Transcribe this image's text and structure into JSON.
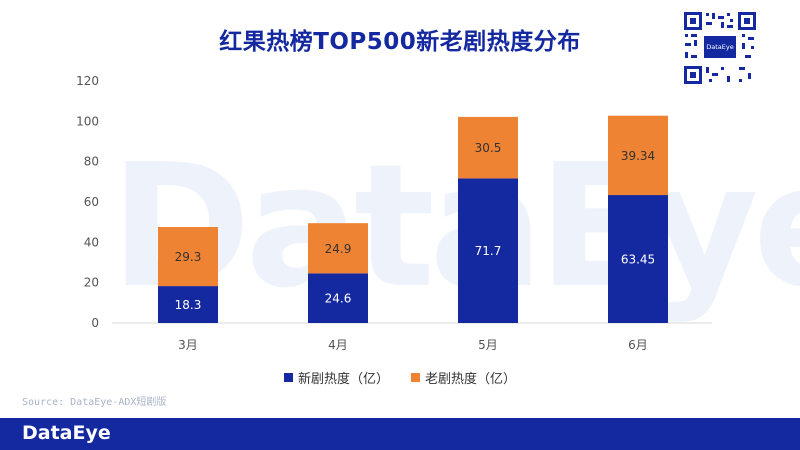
{
  "title": "红果热榜TOP500新老剧热度分布",
  "watermark": "DataEye",
  "source": "Source: DataEye-ADX短剧版",
  "footer_logo": "DataEye",
  "qr_badge": "DataEye",
  "colors": {
    "new": "#1428a0",
    "old": "#ee8333",
    "title": "#1428a0",
    "footer": "#1428a0"
  },
  "chart_data": {
    "type": "bar",
    "stacked": true,
    "title": "红果热榜TOP500新老剧热度分布",
    "categories": [
      "3月",
      "4月",
      "5月",
      "6月"
    ],
    "series": [
      {
        "name": "新剧热度（亿）",
        "values": [
          18.3,
          24.6,
          71.7,
          63.45
        ],
        "labels": [
          "18.3",
          "24.6",
          "71.7",
          "63.45"
        ],
        "color": "#1428a0"
      },
      {
        "name": "老剧热度（亿）",
        "values": [
          29.3,
          24.9,
          30.5,
          39.34
        ],
        "labels": [
          "29.3",
          "24.9",
          "30.5",
          "39.34"
        ],
        "color": "#ee8333"
      }
    ],
    "ylim": [
      0,
      120
    ],
    "yticks": [
      "0",
      "20",
      "40",
      "60",
      "80",
      "100",
      "120"
    ],
    "grid": false,
    "legend": "bottom"
  }
}
